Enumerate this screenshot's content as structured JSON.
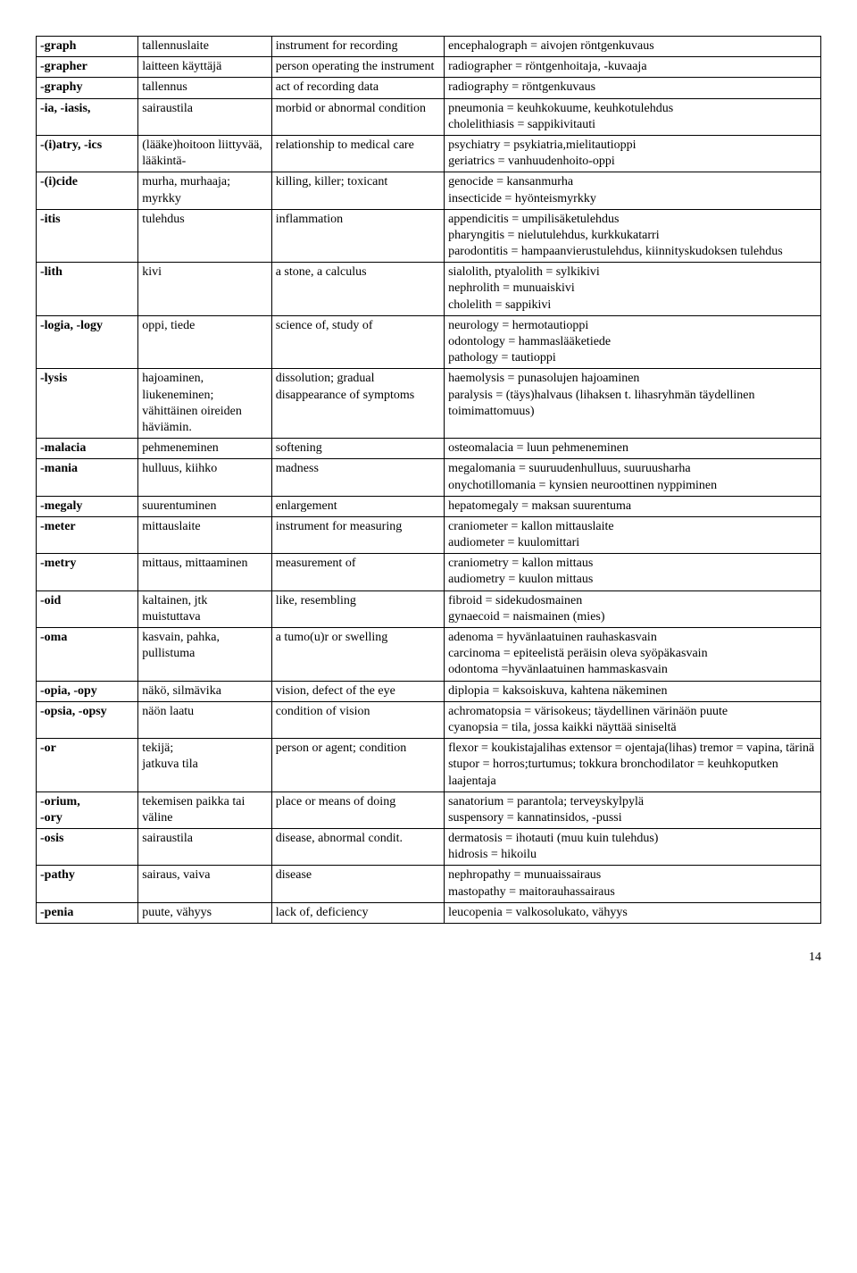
{
  "rows": [
    {
      "c1": "-graph",
      "c2": "tallennuslaite",
      "c3": "instrument for recording",
      "c4": "encephalograph = aivojen röntgenkuvaus"
    },
    {
      "c1": "-grapher",
      "c2": "laitteen käyttäjä",
      "c3": "person operating the instrument",
      "c4": "radiographer = röntgenhoitaja, -kuvaaja"
    },
    {
      "c1": "-graphy",
      "c2": "tallennus",
      "c3": "act of recording data",
      "c4": "radiography = röntgenkuvaus"
    },
    {
      "c1": "-ia, -iasis,",
      "c2": "sairaustila",
      "c3": "morbid or abnormal condition",
      "c4": "pneumonia = keuhkokuume, keuhkotulehdus\ncholelithiasis = sappikivitauti"
    },
    {
      "c1": "-(i)atry, -ics",
      "c2": "(lääke)hoitoon liittyvää, lääkintä-",
      "c3": "relationship to medical care",
      "c4": "psychiatry = psykiatria,mielitautioppi\ngeriatrics = vanhuudenhoito-oppi"
    },
    {
      "c1": "-(i)cide",
      "c2": "murha, murhaaja; myrkky",
      "c3": "killing, killer; toxicant",
      "c4": "genocide = kansanmurha\ninsecticide = hyönteismyrkky"
    },
    {
      "c1": "-itis",
      "c2": "tulehdus",
      "c3": "inflammation",
      "c4": "appendicitis = umpilisäketulehdus\npharyngitis = nielutulehdus, kurkkukatarri\nparodontitis = hampaanvierustulehdus, kiinnityskudoksen tulehdus"
    },
    {
      "c1": "-lith",
      "c2": "kivi",
      "c3": "a stone, a calculus",
      "c4": "sialolith, ptyalolith = sylkikivi\nnephrolith = munuaiskivi\ncholelith = sappikivi"
    },
    {
      "c1": "-logia, -logy",
      "c2": "oppi, tiede",
      "c3": "science of, study of",
      "c4": "neurology = hermotautioppi\nodontology = hammaslääketiede\npathology = tautioppi"
    },
    {
      "c1": "-lysis",
      "c2": "hajoaminen, liukeneminen; vähittäinen oireiden häviämin.",
      "c3": "dissolution; gradual disappearance of symptoms",
      "c4": "haemolysis = punasolujen hajoaminen\nparalysis = (täys)halvaus (lihaksen t. lihasryhmän täydellinen toimimattomuus)"
    },
    {
      "c1": "-malacia",
      "c2": "pehmeneminen",
      "c3": "softening",
      "c4": "osteomalacia = luun pehmeneminen"
    },
    {
      "c1": "-mania",
      "c2": "hulluus, kiihko",
      "c3": "madness",
      "c4": "megalomania = suuruudenhulluus, suuruusharha\nonychotillomania = kynsien neuroottinen nyppiminen"
    },
    {
      "c1": "-megaly",
      "c2": "suurentuminen",
      "c3": "enlargement",
      "c4": "hepatomegaly = maksan suurentuma"
    },
    {
      "c1": "-meter",
      "c2": "mittauslaite",
      "c3": "instrument for measuring",
      "c4": "craniometer = kallon mittauslaite\naudiometer = kuulomittari"
    },
    {
      "c1": "-metry",
      "c2": "mittaus, mittaaminen",
      "c3": "measurement of",
      "c4": "craniometry = kallon mittaus\naudiometry = kuulon mittaus"
    },
    {
      "c1": "-oid",
      "c2": "kaltainen, jtk muistuttava",
      "c3": "like, resembling",
      "c4": "fibroid = sidekudosmainen\ngynaecoid = naismainen (mies)"
    },
    {
      "c1": "-oma",
      "c2": "kasvain, pahka, pullistuma",
      "c3": "a tumo(u)r or swelling",
      "c4": "adenoma = hyvänlaatuinen rauhaskasvain\ncarcinoma = epiteelistä peräisin oleva syöpäkasvain\nodontoma =hyvänlaatuinen hammaskasvain"
    },
    {
      "c1": "-opia, -opy",
      "c2": "näkö, silmävika",
      "c3": "vision, defect of the eye",
      "c4": "diplopia = kaksoiskuva, kahtena näkeminen"
    },
    {
      "c1": "-opsia, -opsy",
      "c2": "näön laatu",
      "c3": "condition of vision",
      "c4": "achromatopsia = värisokeus; täydellinen värinäön puute\ncyanopsia = tila, jossa kaikki näyttää siniseltä"
    },
    {
      "c1": "-or",
      "c2": "tekijä;\njatkuva tila",
      "c3": "person or agent; condition",
      "c4": "flexor = koukistajalihas extensor = ojentaja(lihas)  tremor = vapina, tärinä stupor = horros;turtumus; tokkura bronchodilator = keuhkoputken laajentaja"
    },
    {
      "c1": "-orium,\n-ory",
      "c2": "tekemisen paikka tai väline",
      "c3": "place or means of doing",
      "c4": "sanatorium = parantola; terveyskylpylä\nsuspensory = kannatinsidos, -pussi"
    },
    {
      "c1": "-osis",
      "c2": "sairaustila",
      "c3": "disease, abnormal condit.",
      "c4": "dermatosis = ihotauti (muu kuin tulehdus)\nhidrosis = hikoilu"
    },
    {
      "c1": "-pathy",
      "c2": "sairaus, vaiva",
      "c3": "disease",
      "c4": "nephropathy = munuaissairaus\nmastopathy = maitorauhassairaus"
    },
    {
      "c1": "-penia",
      "c2": "puute, vähyys",
      "c3": "lack of, deficiency",
      "c4": "leucopenia = valkosolukato, vähyys"
    }
  ],
  "pageNumber": "14"
}
